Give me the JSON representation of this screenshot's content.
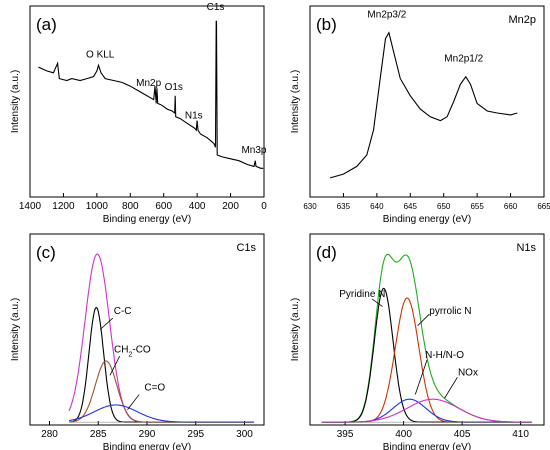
{
  "chart_data": [
    {
      "panel": "(a)",
      "type": "line",
      "title": "",
      "xlabel": "Binding energy (eV)",
      "ylabel": "Intensity (a.u.)",
      "xlim": [
        1400,
        0
      ],
      "x_reversed": true,
      "xticks": [
        1400,
        1200,
        1000,
        800,
        600,
        400,
        200,
        0
      ],
      "yticks_shown": false,
      "ylim": [
        0,
        1
      ],
      "series": [
        {
          "color": "#000000",
          "points": [
            [
              1350,
              0.68
            ],
            [
              1300,
              0.66
            ],
            [
              1260,
              0.65
            ],
            [
              1235,
              0.7
            ],
            [
              1225,
              0.62
            ],
            [
              1180,
              0.61
            ],
            [
              1150,
              0.62
            ],
            [
              1100,
              0.61
            ],
            [
              1060,
              0.62
            ],
            [
              1020,
              0.63
            ],
            [
              1000,
              0.66
            ],
            [
              990,
              0.69
            ],
            [
              975,
              0.65
            ],
            [
              950,
              0.62
            ],
            [
              900,
              0.61
            ],
            [
              850,
              0.6
            ],
            [
              800,
              0.58
            ],
            [
              760,
              0.56
            ],
            [
              720,
              0.54
            ],
            [
              680,
              0.52
            ],
            [
              660,
              0.51
            ],
            [
              652,
              0.58
            ],
            [
              645,
              0.49
            ],
            [
              641,
              0.57
            ],
            [
              636,
              0.49
            ],
            [
              610,
              0.48
            ],
            [
              580,
              0.46
            ],
            [
              550,
              0.45
            ],
            [
              534,
              0.44
            ],
            [
              531,
              0.53
            ],
            [
              528,
              0.42
            ],
            [
              500,
              0.41
            ],
            [
              450,
              0.38
            ],
            [
              415,
              0.36
            ],
            [
              405,
              0.35
            ],
            [
              400,
              0.4
            ],
            [
              395,
              0.35
            ],
            [
              380,
              0.33
            ],
            [
              340,
              0.31
            ],
            [
              300,
              0.28
            ],
            [
              290,
              0.26
            ],
            [
              286,
              0.92
            ],
            [
              284,
              0.92
            ],
            [
              280,
              0.22
            ],
            [
              250,
              0.21
            ],
            [
              200,
              0.2
            ],
            [
              150,
              0.19
            ],
            [
              100,
              0.17
            ],
            [
              60,
              0.16
            ],
            [
              52,
              0.19
            ],
            [
              48,
              0.16
            ],
            [
              20,
              0.15
            ],
            [
              5,
              0.15
            ]
          ]
        }
      ],
      "annotations": [
        {
          "text": "O KLL",
          "x": 980,
          "y": 0.73
        },
        {
          "text": "Mn2p",
          "x": 690,
          "y": 0.58
        },
        {
          "text": "O1s",
          "x": 540,
          "y": 0.56
        },
        {
          "text": "N1s",
          "x": 420,
          "y": 0.41
        },
        {
          "text": "C1s",
          "x": 290,
          "y": 0.98
        },
        {
          "text": "Mn3p",
          "x": 60,
          "y": 0.23
        }
      ]
    },
    {
      "panel": "(b)",
      "type": "line",
      "title": "Mn2p",
      "xlabel": "Binding energy (eV)",
      "ylabel": "Intensity (a.u.)",
      "xlim": [
        630,
        665
      ],
      "xticks": [
        630,
        635,
        640,
        645,
        650,
        655,
        660,
        665
      ],
      "yticks_shown": false,
      "ylim": [
        0,
        1
      ],
      "series": [
        {
          "color": "#000000",
          "points": [
            [
              633,
              0.1
            ],
            [
              635,
              0.12
            ],
            [
              637,
              0.16
            ],
            [
              638.5,
              0.22
            ],
            [
              639.5,
              0.35
            ],
            [
              640.5,
              0.62
            ],
            [
              641.3,
              0.83
            ],
            [
              641.8,
              0.86
            ],
            [
              642.5,
              0.76
            ],
            [
              643.5,
              0.62
            ],
            [
              645,
              0.53
            ],
            [
              646.5,
              0.46
            ],
            [
              648,
              0.42
            ],
            [
              649.5,
              0.4
            ],
            [
              650.5,
              0.42
            ],
            [
              651.5,
              0.5
            ],
            [
              652.5,
              0.59
            ],
            [
              653.3,
              0.63
            ],
            [
              654,
              0.59
            ],
            [
              655,
              0.49
            ],
            [
              656.5,
              0.45
            ],
            [
              658,
              0.44
            ],
            [
              660,
              0.43
            ],
            [
              661,
              0.44
            ]
          ]
        }
      ],
      "annotations": [
        {
          "text": "Mn2p3/2",
          "x": 641.5,
          "y": 0.94
        },
        {
          "text": "Mn2p1/2",
          "x": 653,
          "y": 0.71
        }
      ]
    },
    {
      "panel": "(c)",
      "type": "line",
      "title": "C1s",
      "xlabel": "Binding energy (eV)",
      "ylabel": "Intensity (a.u.)",
      "xlim": [
        278,
        302
      ],
      "xticks": [
        280,
        285,
        290,
        295,
        300
      ],
      "yticks_shown": false,
      "ylim": [
        0,
        1
      ],
      "series": [
        {
          "color": "#cc33cc",
          "peak": "envelope",
          "center": 284.9,
          "height": 0.88,
          "width": 1.25
        },
        {
          "color": "#000000",
          "peak": "C-C",
          "center": 284.8,
          "height": 0.6,
          "width": 0.75
        },
        {
          "color": "#a0522d",
          "peak": "CH2-CO",
          "center": 285.8,
          "height": 0.32,
          "width": 1.1
        },
        {
          "color": "#2233dd",
          "peak": "C=O",
          "center": 286.8,
          "height": 0.09,
          "width": 2.2
        }
      ],
      "annotations": [
        {
          "text": "C-C",
          "x": 287.5,
          "y": 0.58
        },
        {
          "text": "CH",
          "subscript": "2",
          "suffix": "-CO",
          "x": 288.5,
          "y": 0.38
        },
        {
          "text": "C=O",
          "x": 290.8,
          "y": 0.18
        }
      ]
    },
    {
      "panel": "(d)",
      "type": "line",
      "title": "N1s",
      "xlabel": "Binding energy (eV)",
      "ylabel": "Intensity (a.u.)",
      "xlim": [
        392,
        412
      ],
      "xticks": [
        395,
        400,
        405,
        410
      ],
      "yticks_shown": false,
      "ylim": [
        0,
        1
      ],
      "series": [
        {
          "color": "#22aa22",
          "peak": "envelope",
          "center": 0,
          "height": 0,
          "width": 0
        },
        {
          "color": "#000000",
          "peak": "Pyridine N",
          "center": 398.3,
          "height": 0.7,
          "width": 0.8
        },
        {
          "color": "#cc3300",
          "peak": "pyrrolic N",
          "center": 400.3,
          "height": 0.65,
          "width": 1.0
        },
        {
          "color": "#2233dd",
          "peak": "N-H/N-O",
          "center": 400.5,
          "height": 0.12,
          "width": 1.4
        },
        {
          "color": "#cc33cc",
          "peak": "NOx",
          "center": 402.5,
          "height": 0.12,
          "width": 2.2
        }
      ],
      "annotations": [
        {
          "text": "Pyridine N",
          "x": 394.5,
          "y": 0.67
        },
        {
          "text": "pyrrolic N",
          "x": 404,
          "y": 0.58
        },
        {
          "text": "N-H/N-O",
          "x": 403.5,
          "y": 0.35
        },
        {
          "text": "NOx",
          "x": 405.5,
          "y": 0.26
        }
      ]
    }
  ]
}
